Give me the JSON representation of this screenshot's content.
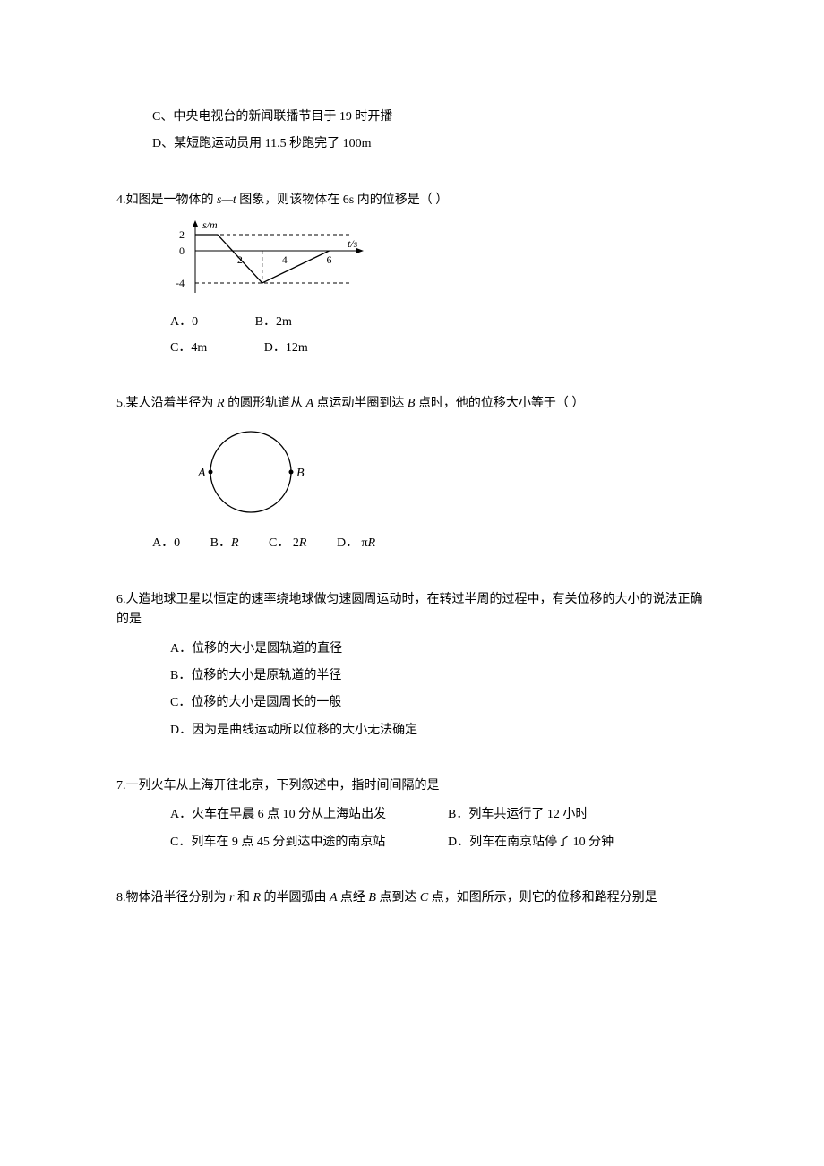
{
  "q3": {
    "optC": "C、中央电视台的新闻联播节目于 19 时开播",
    "optD": "D、某短跑运动员用 11.5 秒跑完了 100m"
  },
  "q4": {
    "stem_prefix": "4.如图是一物体的 ",
    "stem_var": "s—t ",
    "stem_suffix": "图象，则该物体在 6s 内的位移是（      ）",
    "chart": {
      "type": "line",
      "ylabel": "s/m",
      "xlabel": "t/s",
      "yticks": [
        "2",
        "0",
        "-4"
      ],
      "xticks": [
        "2",
        "4",
        "6"
      ],
      "points": [
        [
          0,
          2
        ],
        [
          1,
          2
        ],
        [
          3,
          -4
        ],
        [
          6,
          0
        ]
      ],
      "dashed_y_vals": [
        2,
        -4
      ],
      "x_range": [
        0,
        6.5
      ],
      "y_range": [
        -5,
        3
      ],
      "stroke": "#000000",
      "dash": "4,3",
      "font_size": 12
    },
    "optA": "A．0",
    "optB": "B．2m",
    "optC": "C．4m",
    "optD": "D．12m"
  },
  "q5": {
    "stem_p1": "5.某人沿着半径为 ",
    "stem_R": "R ",
    "stem_p2": "的圆形轨道从 ",
    "stem_A": "A ",
    "stem_p3": "点运动半圈到达 ",
    "stem_B": "B ",
    "stem_p4": "点时，他的位移大小等于（      ）",
    "circle": {
      "radius": 45,
      "labelA": "A",
      "labelB": "B",
      "stroke": "#000000"
    },
    "optA_pre": "A．0",
    "optB_pre": "B．",
    "optB_val": "R",
    "optC_pre": "C． 2",
    "optC_val": "R",
    "optD_pre": "D． π",
    "optD_val": "R"
  },
  "q6": {
    "stem": "6.人造地球卫星以恒定的速率绕地球做匀速圆周运动时，在转过半周的过程中，有关位移的大小的说法正确的是",
    "optA": "A．位移的大小是圆轨道的直径",
    "optB": "B．位移的大小是原轨道的半径",
    "optC": "C．位移的大小是圆周长的一般",
    "optD": "D．因为是曲线运动所以位移的大小无法确定"
  },
  "q7": {
    "stem": "7.一列火车从上海开往北京，下列叙述中，指时间间隔的是",
    "optA": "A．火车在早晨 6 点 10 分从上海站出发",
    "optB": "B．列车共运行了 12 小时",
    "optC": "C．列车在 9 点 45 分到达中途的南京站",
    "optD": "D．列车在南京站停了 10 分钟"
  },
  "q8": {
    "stem_p1": "8.物体沿半径分别为 ",
    "stem_r": "r ",
    "stem_p2": "和 ",
    "stem_R": "R ",
    "stem_p3": "的半圆弧由 ",
    "stem_A": "A ",
    "stem_p4": "点经 ",
    "stem_B": "B ",
    "stem_p5": "点到达 ",
    "stem_C": "C ",
    "stem_p6": "点，如图所示，则它的位移和路程分别是"
  }
}
